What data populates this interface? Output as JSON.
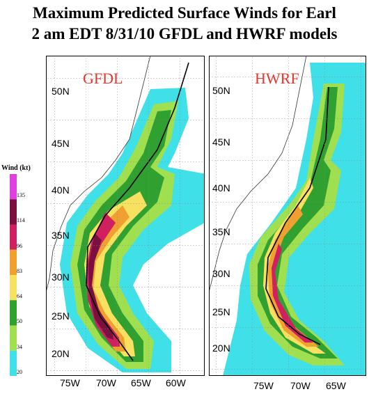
{
  "title_line1": "Maximum Predicted Surface Winds for Earl",
  "title_line2": "2 am EDT 8/31/10 GFDL and HWRF models",
  "legend": {
    "title": "Wind (kt)",
    "levels": [
      "135",
      "114",
      "96",
      "83",
      "64",
      "50",
      "34",
      "20"
    ],
    "colors": [
      "#e040e0",
      "#7a1040",
      "#d02060",
      "#f0a030",
      "#f8e060",
      "#30a030",
      "#a0e050",
      "#40e0e8"
    ]
  },
  "panels": [
    {
      "model": "GFDL",
      "lat_labels": [
        "50N",
        "45N",
        "40N",
        "35N",
        "30N",
        "25N",
        "20N"
      ],
      "lon_labels": [
        "75W",
        "70W",
        "65W",
        "60W"
      ]
    },
    {
      "model": "HWRF",
      "lat_labels": [
        "50N",
        "45N",
        "40N",
        "35N",
        "30N",
        "25N",
        "20N"
      ],
      "lon_labels": [
        "75W",
        "70W",
        "65W"
      ]
    }
  ]
}
